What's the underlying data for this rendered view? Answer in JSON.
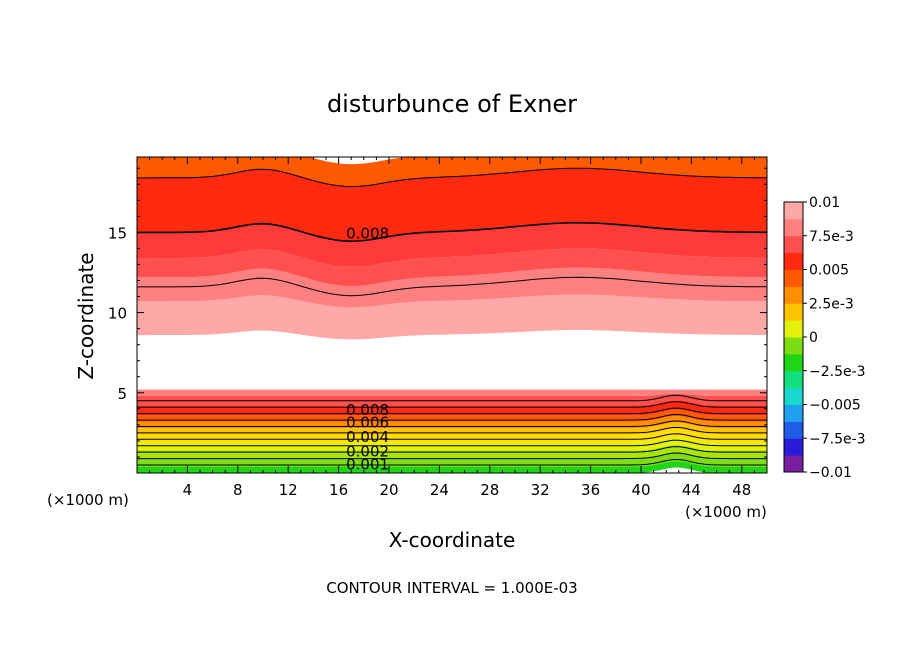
{
  "chart_data": {
    "type": "heatmap",
    "title": "disturbunce of Exner",
    "xlabel": "X-coordinate",
    "ylabel": "Z-coordinate",
    "x_unit": "(×1000 m)",
    "y_unit": "(×1000 m)",
    "footer": "CONTOUR INTERVAL = 1.000E-03",
    "xlim": [
      0,
      50
    ],
    "ylim": [
      0,
      19.7
    ],
    "x_ticks": [
      4,
      8,
      12,
      16,
      20,
      24,
      28,
      32,
      36,
      40,
      44,
      48
    ],
    "y_ticks": [
      5,
      10,
      15
    ],
    "colorbar": {
      "range": [
        -0.01,
        0.01
      ],
      "tick_values": [
        0.01,
        0.0075,
        0.005,
        0.0025,
        0,
        -0.0025,
        -0.005,
        -0.0075,
        -0.01
      ],
      "tick_labels": [
        "0.01",
        "7.5e-3",
        "0.005",
        "2.5e-3",
        "0",
        "−2.5e-3",
        "−0.005",
        "−7.5e-3",
        "−0.01"
      ],
      "colors": [
        "#7a1fa2",
        "#2a1bd8",
        "#1f5ce8",
        "#1ea0ef",
        "#19d7cf",
        "#12e07f",
        "#20d416",
        "#7ddc13",
        "#e4f20b",
        "#ffc400",
        "#ff8e00",
        "#ff5a00",
        "#ff2a10",
        "#ff5050",
        "#ff8080",
        "#ffa8a8"
      ]
    },
    "contour_labels": [
      {
        "text": "0.008",
        "x": 18.3,
        "z": 15.0
      },
      {
        "text": "0.008",
        "x": 18.3,
        "z": 4.0
      },
      {
        "text": "0.006",
        "x": 18.3,
        "z": 3.2
      },
      {
        "text": "0.004",
        "x": 18.3,
        "z": 2.3
      },
      {
        "text": "0.002",
        "x": 18.3,
        "z": 1.4
      },
      {
        "text": "0.001",
        "x": 18.3,
        "z": 0.6
      }
    ]
  }
}
